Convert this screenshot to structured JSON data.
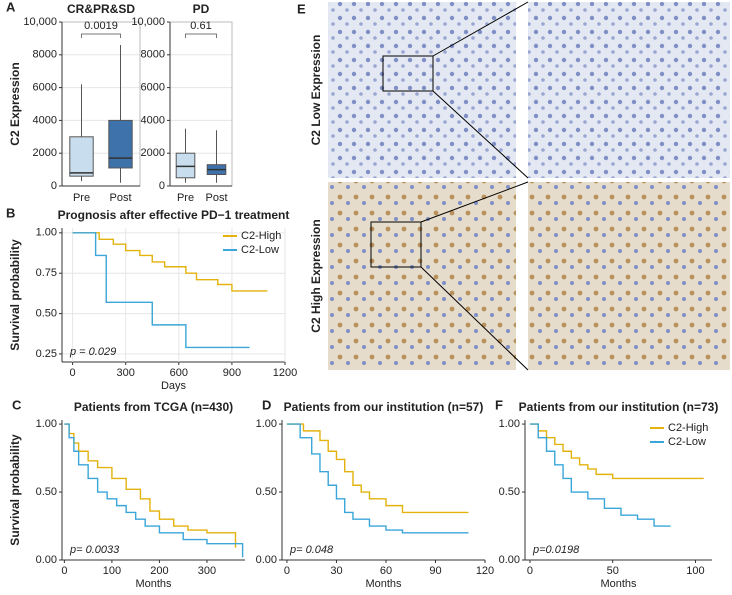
{
  "chart_data": [
    {
      "panel": "A",
      "type": "box",
      "title": "CR&PR&SD",
      "ylabel": "C2 Expression",
      "categories": [
        "Pre",
        "Post"
      ],
      "boxes": [
        {
          "min": 300,
          "q1": 600,
          "median": 800,
          "q3": 3000,
          "max": 6200
        },
        {
          "min": 200,
          "q1": 1100,
          "median": 1700,
          "q3": 4000,
          "max": 8600
        }
      ],
      "colors": [
        "#c8deee",
        "#3d72ab"
      ],
      "p_value": "0.0019",
      "ylim": [
        0,
        10000
      ],
      "yticks": [
        0,
        2000,
        4000,
        6000,
        8000,
        {
          "value": 10000,
          "label": "10,000"
        }
      ]
    },
    {
      "type": "box",
      "title": "PD",
      "categories": [
        "Pre",
        "Post"
      ],
      "boxes": [
        {
          "min": 200,
          "q1": 500,
          "median": 1200,
          "q3": 2000,
          "max": 3500
        },
        {
          "min": 200,
          "q1": 700,
          "median": 1000,
          "q3": 1300,
          "max": 3400
        }
      ],
      "colors": [
        "#c8deee",
        "#3d72ab"
      ],
      "p_value": "0.61",
      "ylim": [
        0,
        10000
      ],
      "yticks": [
        0,
        2000,
        4000,
        6000,
        8000,
        {
          "value": 10000,
          "label": "10,000"
        }
      ]
    },
    {
      "panel": "B",
      "type": "line",
      "title": "Prognosis after effective PD−1 treatment",
      "xlabel": "Days",
      "ylabel": "Survival probability",
      "annotation": "p = 0.029",
      "xlim": [
        -60,
        1200
      ],
      "xticks": [
        0,
        300,
        600,
        900,
        1200
      ],
      "ylim": [
        0.2,
        1.03
      ],
      "yticks": [
        {
          "value": 0.25,
          "label": "0.25"
        },
        {
          "value": 0.5,
          "label": "0.50"
        },
        {
          "value": 0.75,
          "label": "0.75"
        },
        {
          "value": 1,
          "label": "1.00"
        }
      ],
      "grid": true,
      "legend": "top-right",
      "series": [
        {
          "name": "C2-High",
          "color": "#e3b20c",
          "x": [
            0,
            150,
            230,
            300,
            380,
            450,
            520,
            640,
            700,
            820,
            900,
            1100
          ],
          "values": [
            1,
            0.96,
            0.93,
            0.89,
            0.86,
            0.82,
            0.79,
            0.75,
            0.71,
            0.68,
            0.64,
            0.64
          ]
        },
        {
          "name": "C2-Low",
          "color": "#3aa6d9",
          "x": [
            0,
            130,
            190,
            450,
            640,
            1000
          ],
          "values": [
            1,
            0.86,
            0.57,
            0.43,
            0.29,
            0.29
          ]
        }
      ]
    },
    {
      "panel": "C",
      "type": "line",
      "title": "Patients from TCGA (n=430)",
      "xlabel": "Months",
      "ylabel": "Survival probability",
      "annotation": "p= 0.0033",
      "xlim": [
        -5,
        380
      ],
      "xticks": [
        0,
        100,
        200,
        300
      ],
      "ylim": [
        0,
        1.03
      ],
      "yticks": [
        {
          "value": 0,
          "label": "0.00"
        },
        {
          "value": 0.5,
          "label": "0.50"
        },
        {
          "value": 1,
          "label": "1.00"
        }
      ],
      "grid": false,
      "series": [
        {
          "color": "#e3b20c",
          "x": [
            0,
            10,
            20,
            30,
            50,
            70,
            100,
            130,
            160,
            180,
            200,
            230,
            260,
            300,
            350,
            360
          ],
          "values": [
            1,
            0.93,
            0.86,
            0.8,
            0.73,
            0.68,
            0.6,
            0.52,
            0.45,
            0.36,
            0.3,
            0.25,
            0.22,
            0.2,
            0.2,
            0.09
          ]
        },
        {
          "color": "#3aa6d9",
          "x": [
            0,
            10,
            20,
            30,
            50,
            70,
            90,
            110,
            130,
            150,
            170,
            200,
            250,
            300,
            370,
            375
          ],
          "values": [
            1,
            0.9,
            0.8,
            0.7,
            0.6,
            0.5,
            0.45,
            0.4,
            0.35,
            0.3,
            0.25,
            0.2,
            0.15,
            0.12,
            0.12,
            0.02
          ]
        }
      ]
    },
    {
      "panel": "D",
      "type": "line",
      "title": "Patients from our institution (n=57)",
      "xlabel": "Months",
      "annotation": "p= 0.048",
      "xlim": [
        -3,
        120
      ],
      "xticks": [
        0,
        30,
        60,
        90,
        120
      ],
      "ylim": [
        0,
        1.03
      ],
      "yticks": [
        {
          "value": 0,
          "label": "0.00"
        },
        {
          "value": 0.5,
          "label": "0.50"
        },
        {
          "value": 1,
          "label": "1.00"
        }
      ],
      "grid": false,
      "series": [
        {
          "color": "#e3b20c",
          "x": [
            0,
            10,
            20,
            25,
            30,
            35,
            40,
            45,
            50,
            60,
            70,
            110
          ],
          "values": [
            1,
            0.95,
            0.88,
            0.8,
            0.74,
            0.65,
            0.55,
            0.5,
            0.45,
            0.4,
            0.35,
            0.35
          ]
        },
        {
          "color": "#3aa6d9",
          "x": [
            0,
            8,
            15,
            20,
            25,
            30,
            35,
            40,
            50,
            60,
            70,
            110
          ],
          "values": [
            1,
            0.9,
            0.78,
            0.65,
            0.55,
            0.45,
            0.35,
            0.3,
            0.25,
            0.22,
            0.2,
            0.2
          ]
        }
      ]
    },
    {
      "panel": "F",
      "type": "line",
      "title": "Patients from our institution (n=73)",
      "xlabel": "Months",
      "annotation": "p=0.0198",
      "xlim": [
        -3,
        110
      ],
      "xticks": [
        0,
        50,
        100
      ],
      "ylim": [
        0,
        1.03
      ],
      "yticks": [
        {
          "value": 0,
          "label": "0.00"
        },
        {
          "value": 0.5,
          "label": "0.50"
        },
        {
          "value": 1,
          "label": "1.00"
        }
      ],
      "grid": false,
      "legend": "top-right",
      "series": [
        {
          "name": "C2-High",
          "color": "#e3b20c",
          "x": [
            0,
            5,
            10,
            15,
            20,
            25,
            30,
            35,
            40,
            50,
            60,
            105
          ],
          "values": [
            1,
            0.95,
            0.9,
            0.85,
            0.8,
            0.75,
            0.7,
            0.67,
            0.63,
            0.6,
            0.6,
            0.6
          ]
        },
        {
          "name": "C2-Low",
          "color": "#3aa6d9",
          "x": [
            0,
            5,
            10,
            15,
            20,
            25,
            35,
            45,
            55,
            65,
            75,
            85
          ],
          "values": [
            1,
            0.9,
            0.8,
            0.7,
            0.6,
            0.5,
            0.45,
            0.38,
            0.33,
            0.3,
            0.25,
            0.25
          ]
        }
      ]
    }
  ],
  "images": {
    "panel": "E",
    "labels": [
      "C2 Low Expression",
      "C2 High Expression"
    ]
  }
}
